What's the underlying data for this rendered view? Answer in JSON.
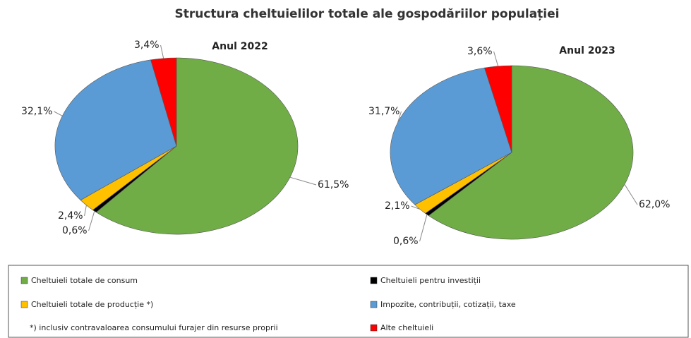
{
  "title": "Structura cheltuielilor totale ale gospodăriilor populației",
  "categories": [
    "Cheltuieli totale de consum",
    "Cheltuieli pentru investiții",
    "Cheltuieli totale de producție *)",
    "Impozite, contribuții, cotizații, taxe",
    "Alte cheltuieli"
  ],
  "colors": [
    "#70ad47",
    "#000000",
    "#ffc000",
    "#5b9bd5",
    "#ff0000"
  ],
  "note": "*) inclusiv contravaloarea consumului furajer din resurse proprii",
  "chart_data": [
    {
      "type": "pie",
      "title": "Anul 2022",
      "values": [
        61.5,
        0.6,
        2.4,
        32.1,
        3.4
      ],
      "value_labels": [
        "61,5%",
        "0,6%",
        "2,4%",
        "32,1%",
        "3,4%"
      ]
    },
    {
      "type": "pie",
      "title": "Anul 2023",
      "values": [
        62.0,
        0.6,
        2.1,
        31.7,
        3.6
      ],
      "value_labels": [
        "62,0%",
        "0,6%",
        "2,1%",
        "31,7%",
        "3,6%"
      ]
    }
  ]
}
